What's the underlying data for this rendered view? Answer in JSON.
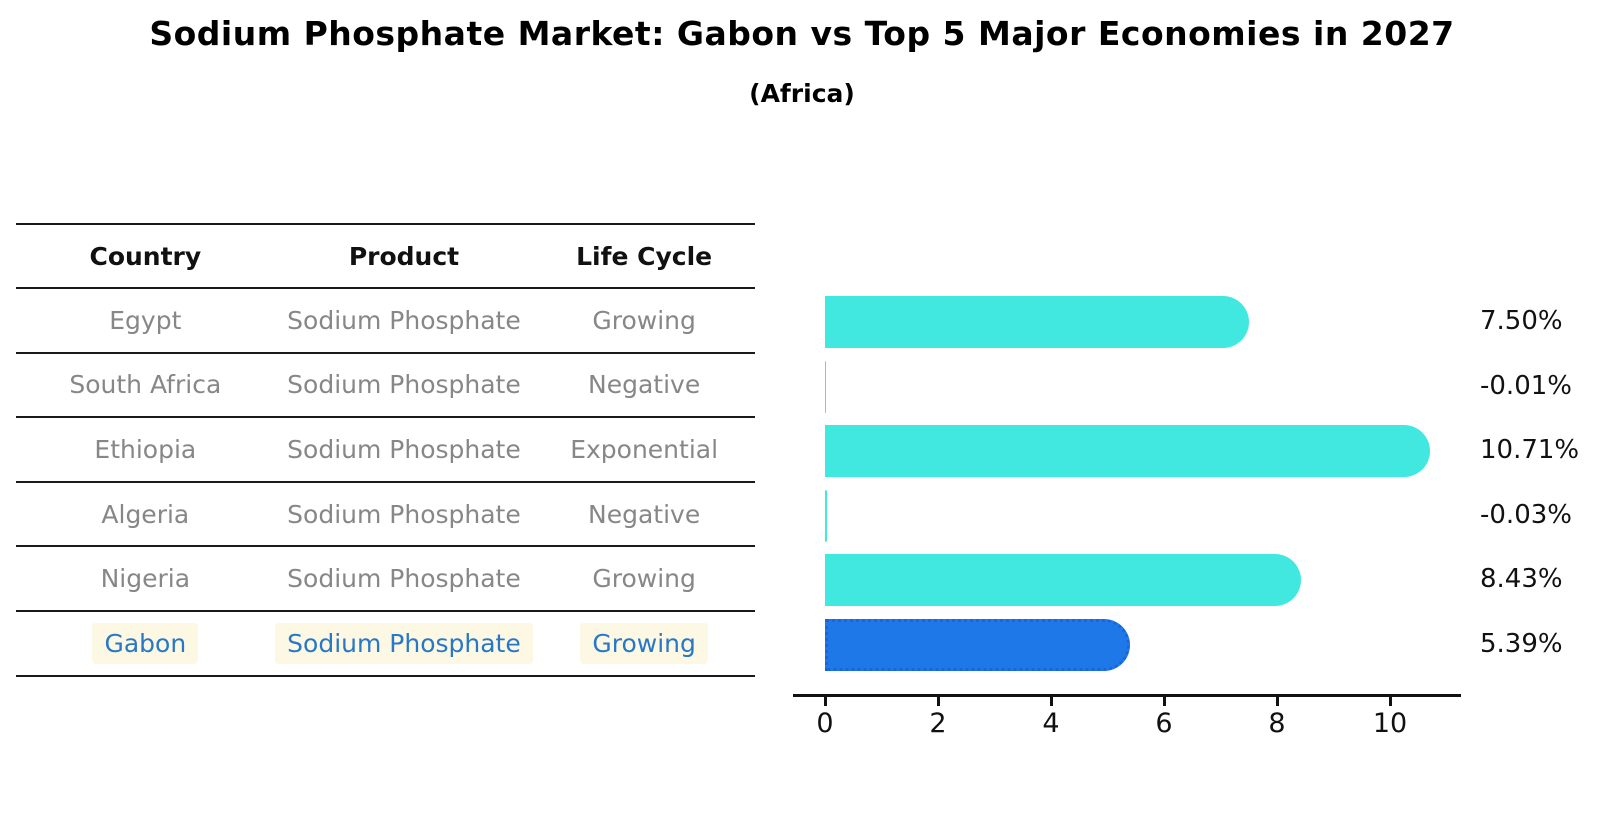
{
  "title": "Sodium Phosphate Market: Gabon vs Top 5 Major Economies in 2027",
  "subtitle": "(Africa)",
  "table": {
    "headers": [
      "Country",
      "Product",
      "Life Cycle"
    ],
    "rows": [
      {
        "country": "Egypt",
        "product": "Sodium Phosphate",
        "life_cycle": "Growing",
        "highlight": false
      },
      {
        "country": "South Africa",
        "product": "Sodium Phosphate",
        "life_cycle": "Negative",
        "highlight": false
      },
      {
        "country": "Ethiopia",
        "product": "Sodium Phosphate",
        "life_cycle": "Exponential",
        "highlight": false
      },
      {
        "country": "Algeria",
        "product": "Sodium Phosphate",
        "life_cycle": "Negative",
        "highlight": false
      },
      {
        "country": "Nigeria",
        "product": "Sodium Phosphate",
        "life_cycle": "Growing",
        "highlight": true
      }
    ]
  },
  "gabon_row": {
    "country": "Gabon",
    "product": "Sodium Phosphate",
    "life_cycle": "Growing"
  },
  "chart_data": {
    "type": "bar",
    "orientation": "horizontal",
    "title": "Sodium Phosphate Market: Gabon vs Top 5 Major Economies in 2027",
    "subtitle": "(Africa)",
    "categories": [
      "Egypt",
      "South Africa",
      "Ethiopia",
      "Algeria",
      "Nigeria",
      "Gabon"
    ],
    "values": [
      7.5,
      -0.01,
      10.71,
      -0.03,
      8.43,
      5.39
    ],
    "value_labels": [
      "7.50%",
      "-0.01%",
      "10.71%",
      "-0.03%",
      "8.43%",
      "5.39%"
    ],
    "x_ticks": [
      0,
      2,
      4,
      6,
      8,
      10
    ],
    "xlim": [
      -0.57,
      11.25
    ],
    "grid": false,
    "legend": "none",
    "highlight_index": 5
  },
  "colors": {
    "bar": "#40E8E0",
    "highlight_bar": "#1E78E8",
    "highlight_edge": "#1A66D9",
    "row_text": "#878787",
    "highlight_text": "#2878C8",
    "highlight_cell_bg": "#FCF8E3",
    "axis": "#111111"
  }
}
